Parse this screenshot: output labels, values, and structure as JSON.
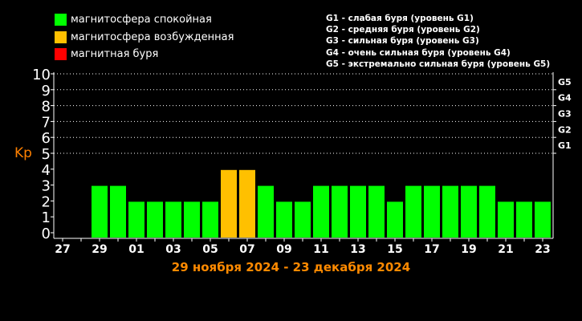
{
  "legend": [
    {
      "label": "магнитосфера спокойная",
      "color": "#00ff00"
    },
    {
      "label": "магнитосфера возбужденная",
      "color": "#ffc000"
    },
    {
      "label": "магнитная буря",
      "color": "#ff0000"
    }
  ],
  "storm_levels": [
    "G1 - слабая буря (уровень G1)",
    "G2 - средняя буря (уровень G2)",
    "G3 - сильная буря (уровень G3)",
    "G4 - очень сильная буря (уровень G4)",
    "G5 - экстремально сильная буря (уровень G5)"
  ],
  "date_range": "29 ноября 2024 - 23 декабря 2024",
  "chart_data": {
    "type": "bar",
    "ylabel": "Kp",
    "ylim": [
      0,
      10
    ],
    "yticks": [
      "0",
      "1",
      "2",
      "3",
      "4",
      "5",
      "6",
      "7",
      "8",
      "9",
      "10"
    ],
    "right_ticks": [
      {
        "value": 5,
        "label": "G1"
      },
      {
        "value": 6,
        "label": "G2"
      },
      {
        "value": 7,
        "label": "G3"
      },
      {
        "value": 8,
        "label": "G4"
      },
      {
        "value": 9,
        "label": "G5"
      }
    ],
    "grid": "dotted horizontal lines at 5-10",
    "x_tick_labels": [
      "27",
      "29",
      "01",
      "03",
      "05",
      "07",
      "09",
      "11",
      "13",
      "15",
      "17",
      "19",
      "21",
      "23"
    ],
    "categories": [
      "29",
      "30",
      "01",
      "02",
      "03",
      "04",
      "05",
      "06",
      "07",
      "08",
      "09",
      "10",
      "11",
      "12",
      "13",
      "14",
      "15",
      "16",
      "17",
      "18",
      "19",
      "20",
      "21",
      "22",
      "23"
    ],
    "values": [
      3,
      3,
      2,
      2,
      2,
      2,
      2,
      4,
      4,
      3,
      2,
      2,
      3,
      3,
      3,
      3,
      2,
      3,
      3,
      3,
      3,
      3,
      2,
      2,
      2
    ],
    "colors": {
      "quiet": "#00ff00",
      "excited": "#ffc000",
      "storm": "#ff0000"
    },
    "value_colors": [
      "quiet",
      "quiet",
      "quiet",
      "quiet",
      "quiet",
      "quiet",
      "quiet",
      "excited",
      "excited",
      "quiet",
      "quiet",
      "quiet",
      "quiet",
      "quiet",
      "quiet",
      "quiet",
      "quiet",
      "quiet",
      "quiet",
      "quiet",
      "quiet",
      "quiet",
      "quiet",
      "quiet",
      "quiet"
    ]
  }
}
